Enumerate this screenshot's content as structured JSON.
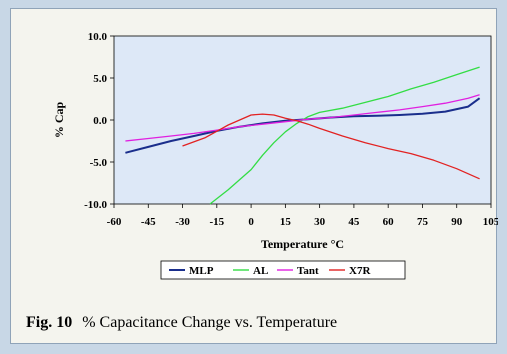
{
  "caption": {
    "label": "Fig. 10",
    "text": "% Capacitance Change vs. Temperature"
  },
  "colors": {
    "page_bg": "#c8d7e6",
    "panel_bg": "#f4f4ee",
    "plot_bg": "#dde8f7"
  },
  "chart_data": {
    "type": "line",
    "title": "",
    "xlabel": "Temperature °C",
    "ylabel": "% Cap",
    "xlim": [
      -60,
      105
    ],
    "ylim": [
      -10,
      10
    ],
    "x_ticks": [
      -60,
      -45,
      -30,
      -15,
      0,
      15,
      30,
      45,
      60,
      75,
      90,
      105
    ],
    "x_tick_labels": [
      "-60",
      "-45",
      "-30",
      "-15",
      "0",
      "15",
      "30",
      "45",
      "60",
      "75",
      "90",
      "105"
    ],
    "y_ticks": [
      10,
      5,
      0,
      -5,
      -10
    ],
    "y_tick_labels": [
      "10.0",
      "5.0",
      "0.0",
      "-5.0",
      "-10.0"
    ],
    "grid": false,
    "legend_position": "bottom-center",
    "series": [
      {
        "name": "MLP",
        "color": "#1a2e8c",
        "x": [
          -55,
          -45,
          -35,
          -25,
          -15,
          -5,
          5,
          15,
          25,
          35,
          45,
          55,
          65,
          75,
          85,
          95,
          100
        ],
        "y": [
          -3.9,
          -3.2,
          -2.5,
          -1.9,
          -1.3,
          -0.8,
          -0.4,
          -0.1,
          0.1,
          0.3,
          0.45,
          0.5,
          0.6,
          0.75,
          1.0,
          1.6,
          2.6
        ]
      },
      {
        "name": "AL",
        "color": "#33dd44",
        "x": [
          -18,
          -10,
          -5,
          0,
          5,
          10,
          15,
          20,
          25,
          30,
          40,
          50,
          60,
          70,
          80,
          90,
          100
        ],
        "y": [
          -10,
          -8.3,
          -7.1,
          -5.9,
          -4.2,
          -2.7,
          -1.4,
          -0.4,
          0.4,
          0.9,
          1.4,
          2.1,
          2.8,
          3.7,
          4.5,
          5.4,
          6.3
        ]
      },
      {
        "name": "Tant",
        "color": "#e020e0",
        "x": [
          -55,
          -45,
          -35,
          -25,
          -15,
          -5,
          5,
          15,
          25,
          35,
          45,
          55,
          65,
          75,
          85,
          95,
          100
        ],
        "y": [
          -2.5,
          -2.2,
          -1.9,
          -1.6,
          -1.2,
          -0.8,
          -0.5,
          -0.2,
          0.1,
          0.3,
          0.6,
          0.9,
          1.2,
          1.6,
          2.0,
          2.6,
          3.0
        ]
      },
      {
        "name": "X7R",
        "color": "#e22222",
        "x": [
          -30,
          -20,
          -10,
          0,
          5,
          10,
          15,
          20,
          25,
          30,
          40,
          50,
          60,
          70,
          80,
          90,
          100
        ],
        "y": [
          -3.1,
          -2.1,
          -0.6,
          0.6,
          0.7,
          0.6,
          0.2,
          -0.1,
          -0.5,
          -1.0,
          -1.9,
          -2.7,
          -3.4,
          -4.0,
          -4.8,
          -5.8,
          -7.0
        ]
      }
    ]
  }
}
